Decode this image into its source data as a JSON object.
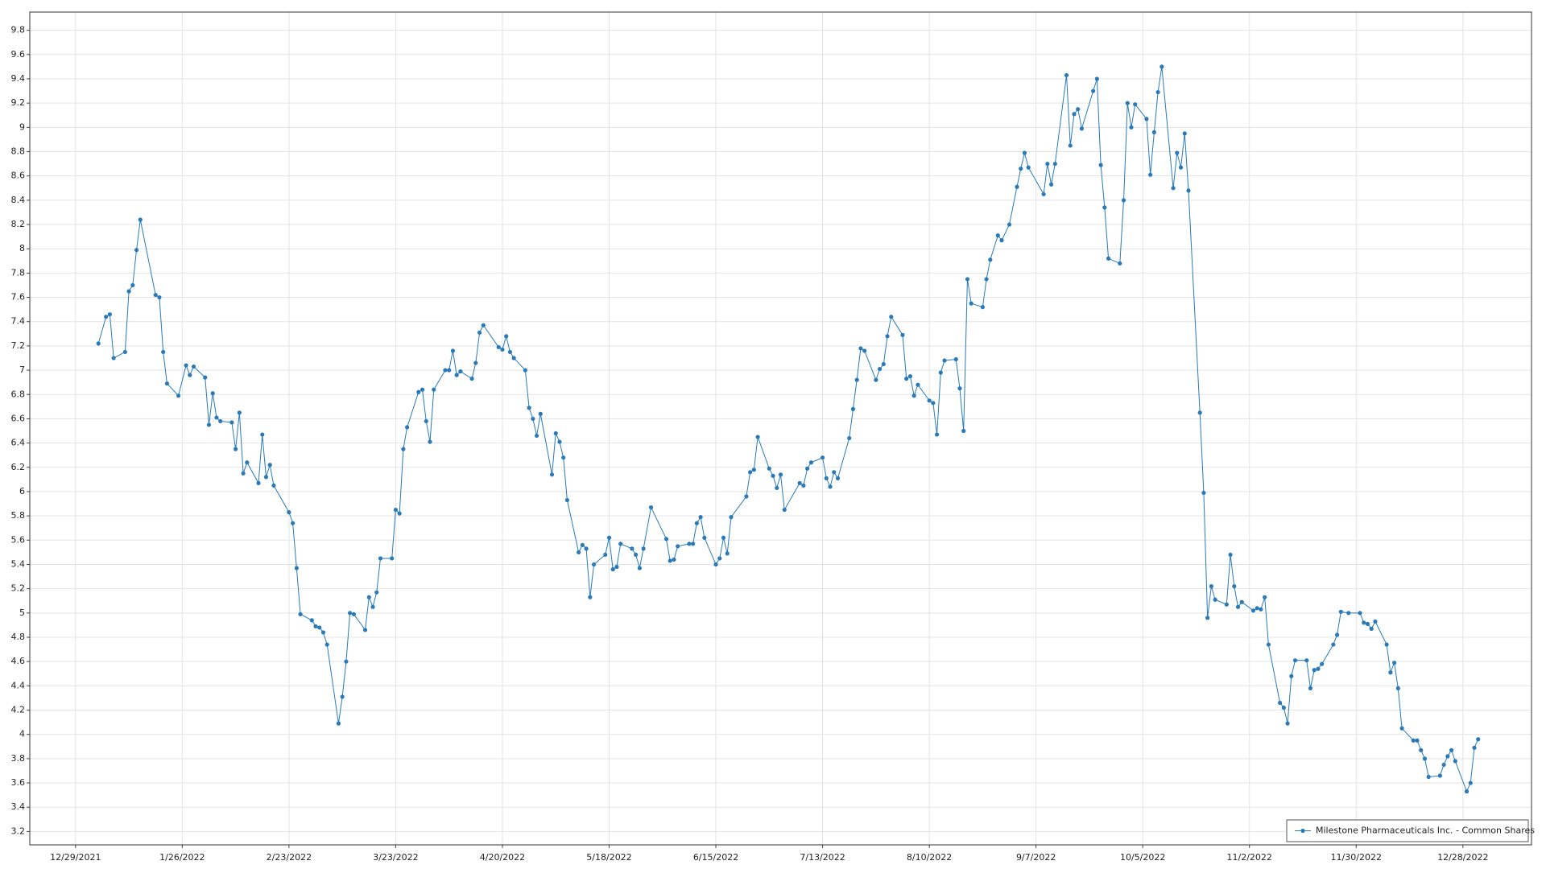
{
  "chart_data": {
    "type": "line",
    "x": [
      "1/4/2022",
      "1/6/2022",
      "1/7/2022",
      "1/8/2022",
      "1/11/2022",
      "1/12/2022",
      "1/13/2022",
      "1/14/2022",
      "1/15/2022",
      "1/19/2022",
      "1/20/2022",
      "1/21/2022",
      "1/22/2022",
      "1/25/2022",
      "1/27/2022",
      "1/28/2022",
      "1/29/2022",
      "2/1/2022",
      "2/2/2022",
      "2/3/2022",
      "2/4/2022",
      "2/5/2022",
      "2/8/2022",
      "2/9/2022",
      "2/10/2022",
      "2/11/2022",
      "2/12/2022",
      "2/15/2022",
      "2/16/2022",
      "2/17/2022",
      "2/18/2022",
      "2/19/2022",
      "2/23/2022",
      "2/24/2022",
      "2/25/2022",
      "2/26/2022",
      "3/1/2022",
      "3/2/2022",
      "3/3/2022",
      "3/4/2022",
      "3/5/2022",
      "3/8/2022",
      "3/9/2022",
      "3/10/2022",
      "3/11/2022",
      "3/12/2022",
      "3/15/2022",
      "3/16/2022",
      "3/17/2022",
      "3/18/2022",
      "3/19/2022",
      "3/22/2022",
      "3/23/2022",
      "3/24/2022",
      "3/25/2022",
      "3/26/2022",
      "3/29/2022",
      "3/30/2022",
      "3/31/2022",
      "4/1/2022",
      "4/2/2022",
      "4/5/2022",
      "4/6/2022",
      "4/7/2022",
      "4/8/2022",
      "4/9/2022",
      "4/12/2022",
      "4/13/2022",
      "4/14/2022",
      "4/15/2022",
      "4/19/2022",
      "4/20/2022",
      "4/21/2022",
      "4/22/2022",
      "4/23/2022",
      "4/26/2022",
      "4/27/2022",
      "4/28/2022",
      "4/29/2022",
      "4/30/2022",
      "5/3/2022",
      "5/4/2022",
      "5/5/2022",
      "5/6/2022",
      "5/7/2022",
      "5/10/2022",
      "5/11/2022",
      "5/12/2022",
      "5/13/2022",
      "5/14/2022",
      "5/17/2022",
      "5/18/2022",
      "5/19/2022",
      "5/20/2022",
      "5/21/2022",
      "5/24/2022",
      "5/25/2022",
      "5/26/2022",
      "5/27/2022",
      "5/29/2022",
      "6/2/2022",
      "6/3/2022",
      "6/4/2022",
      "6/5/2022",
      "6/8/2022",
      "6/9/2022",
      "6/10/2022",
      "6/11/2022",
      "6/12/2022",
      "6/15/2022",
      "6/16/2022",
      "6/17/2022",
      "6/18/2022",
      "6/19/2022",
      "6/23/2022",
      "6/24/2022",
      "6/25/2022",
      "6/26/2022",
      "6/29/2022",
      "6/30/2022",
      "7/1/2022",
      "7/2/2022",
      "7/3/2022",
      "7/7/2022",
      "7/8/2022",
      "7/9/2022",
      "7/10/2022",
      "7/13/2022",
      "7/14/2022",
      "7/15/2022",
      "7/16/2022",
      "7/17/2022",
      "7/20/2022",
      "7/21/2022",
      "7/22/2022",
      "7/23/2022",
      "7/24/2022",
      "7/27/2022",
      "7/28/2022",
      "7/29/2022",
      "7/30/2022",
      "7/31/2022",
      "8/3/2022",
      "8/4/2022",
      "8/5/2022",
      "8/6/2022",
      "8/7/2022",
      "8/10/2022",
      "8/11/2022",
      "8/12/2022",
      "8/13/2022",
      "8/14/2022",
      "8/17/2022",
      "8/18/2022",
      "8/19/2022",
      "8/20/2022",
      "8/21/2022",
      "8/24/2022",
      "8/25/2022",
      "8/26/2022",
      "8/28/2022",
      "8/29/2022",
      "8/31/2022",
      "9/2/2022",
      "9/3/2022",
      "9/4/2022",
      "9/5/2022",
      "9/9/2022",
      "9/10/2022",
      "9/11/2022",
      "9/12/2022",
      "9/15/2022",
      "9/16/2022",
      "9/17/2022",
      "9/18/2022",
      "9/19/2022",
      "9/22/2022",
      "9/23/2022",
      "9/24/2022",
      "9/25/2022",
      "9/26/2022",
      "9/29/2022",
      "9/30/2022",
      "10/1/2022",
      "10/2/2022",
      "10/3/2022",
      "10/6/2022",
      "10/7/2022",
      "10/8/2022",
      "10/9/2022",
      "10/10/2022",
      "10/13/2022",
      "10/14/2022",
      "10/15/2022",
      "10/16/2022",
      "10/17/2022",
      "10/20/2022",
      "10/21/2022",
      "10/22/2022",
      "10/23/2022",
      "10/24/2022",
      "10/27/2022",
      "10/28/2022",
      "10/29/2022",
      "10/30/2022",
      "10/31/2022",
      "11/3/2022",
      "11/4/2022",
      "11/5/2022",
      "11/6/2022",
      "11/7/2022",
      "11/10/2022",
      "11/11/2022",
      "11/12/2022",
      "11/13/2022",
      "11/14/2022",
      "11/17/2022",
      "11/18/2022",
      "11/19/2022",
      "11/20/2022",
      "11/21/2022",
      "11/24/2022",
      "11/25/2022",
      "11/26/2022",
      "11/28/2022",
      "12/1/2022",
      "12/2/2022",
      "12/3/2022",
      "12/4/2022",
      "12/5/2022",
      "12/8/2022",
      "12/9/2022",
      "12/10/2022",
      "12/11/2022",
      "12/12/2022",
      "12/15/2022",
      "12/16/2022",
      "12/17/2022",
      "12/18/2022",
      "12/19/2022",
      "12/22/2022",
      "12/23/2022",
      "12/24/2022",
      "12/25/2022",
      "12/26/2022",
      "12/29/2022",
      "12/30/2022",
      "12/31/2022",
      "1/1/2023"
    ],
    "series": [
      {
        "name": "Milestone Pharmaceuticals Inc. - Common Shares",
        "color": "#2a7ab8",
        "values": [
          7.22,
          7.44,
          7.46,
          7.1,
          7.15,
          7.65,
          7.7,
          7.99,
          8.24,
          7.62,
          7.6,
          7.15,
          6.89,
          6.79,
          7.04,
          6.96,
          7.03,
          6.94,
          6.55,
          6.81,
          6.61,
          6.58,
          6.57,
          6.35,
          6.65,
          6.15,
          6.24,
          6.07,
          6.47,
          6.12,
          6.22,
          6.05,
          5.83,
          5.74,
          5.37,
          4.99,
          4.94,
          4.89,
          4.88,
          4.84,
          4.74,
          4.09,
          4.31,
          4.6,
          5.0,
          4.99,
          4.86,
          5.13,
          5.05,
          5.17,
          5.45,
          5.45,
          5.85,
          5.82,
          6.35,
          6.53,
          6.82,
          6.84,
          6.58,
          6.41,
          6.84,
          7.0,
          7.0,
          7.16,
          6.96,
          6.99,
          6.93,
          7.06,
          7.31,
          7.37,
          7.19,
          7.17,
          7.28,
          7.15,
          7.1,
          7.0,
          6.69,
          6.6,
          6.46,
          6.64,
          6.14,
          6.48,
          6.41,
          6.28,
          5.93,
          5.5,
          5.56,
          5.53,
          5.13,
          5.4,
          5.48,
          5.62,
          5.36,
          5.38,
          5.57,
          5.53,
          5.48,
          5.37,
          5.53,
          5.87,
          5.61,
          5.43,
          5.44,
          5.55,
          5.57,
          5.57,
          5.74,
          5.79,
          5.62,
          5.4,
          5.45,
          5.62,
          5.49,
          5.79,
          5.96,
          6.16,
          6.18,
          6.45,
          6.19,
          6.13,
          6.03,
          6.14,
          5.85,
          6.07,
          6.05,
          6.19,
          6.24,
          6.28,
          6.11,
          6.04,
          6.16,
          6.11,
          6.44,
          6.68,
          6.92,
          7.18,
          7.16,
          6.92,
          7.01,
          7.05,
          7.28,
          7.44,
          7.29,
          6.93,
          6.95,
          6.79,
          6.88,
          6.75,
          6.73,
          6.47,
          6.98,
          7.08,
          7.09,
          6.85,
          6.5,
          7.75,
          7.55,
          7.52,
          7.75,
          7.91,
          8.11,
          8.07,
          8.2,
          8.51,
          8.66,
          8.79,
          8.67,
          8.45,
          8.7,
          8.53,
          8.7,
          9.43,
          8.85,
          9.11,
          9.15,
          8.99,
          9.3,
          9.4,
          8.69,
          8.34,
          7.92,
          7.88,
          8.4,
          9.2,
          9.0,
          9.19,
          9.07,
          8.61,
          8.96,
          9.29,
          9.5,
          8.5,
          8.79,
          8.67,
          8.95,
          8.48,
          6.65,
          5.99,
          4.96,
          5.22,
          5.11,
          5.07,
          5.48,
          5.22,
          5.05,
          5.09,
          5.02,
          5.04,
          5.03,
          5.13,
          4.74,
          4.26,
          4.22,
          4.09,
          4.48,
          4.61,
          4.61,
          4.38,
          4.53,
          4.54,
          4.58,
          4.74,
          4.82,
          5.01,
          5.0,
          5.0,
          4.92,
          4.91,
          4.87,
          4.93,
          4.74,
          4.51,
          4.59,
          4.38,
          4.05,
          3.95,
          3.95,
          3.87,
          3.8,
          3.65,
          3.66,
          3.75,
          3.82,
          3.87,
          3.78,
          3.53,
          3.6,
          3.89,
          3.96
        ]
      }
    ],
    "xlim": [
      "12/17/2021",
      "1/15/2023"
    ],
    "xticks": [
      "12/29/2021",
      "1/26/2022",
      "2/23/2022",
      "3/23/2022",
      "4/20/2022",
      "5/18/2022",
      "6/15/2022",
      "7/13/2022",
      "8/10/2022",
      "9/7/2022",
      "10/5/2022",
      "11/2/2022",
      "11/30/2022",
      "12/28/2022"
    ],
    "ylim": [
      3.09,
      9.95
    ],
    "yticks": [
      3.2,
      3.4,
      3.6,
      3.8,
      4,
      4.2,
      4.4,
      4.6,
      4.8,
      5,
      5.2,
      5.4,
      5.6,
      5.8,
      6,
      6.2,
      6.4,
      6.6,
      6.8,
      7,
      7.2,
      7.4,
      7.6,
      7.8,
      8,
      8.2,
      8.4,
      8.6,
      8.8,
      9,
      9.2,
      9.4,
      9.6,
      9.8
    ],
    "grid": true,
    "legend": "bottom-right"
  }
}
